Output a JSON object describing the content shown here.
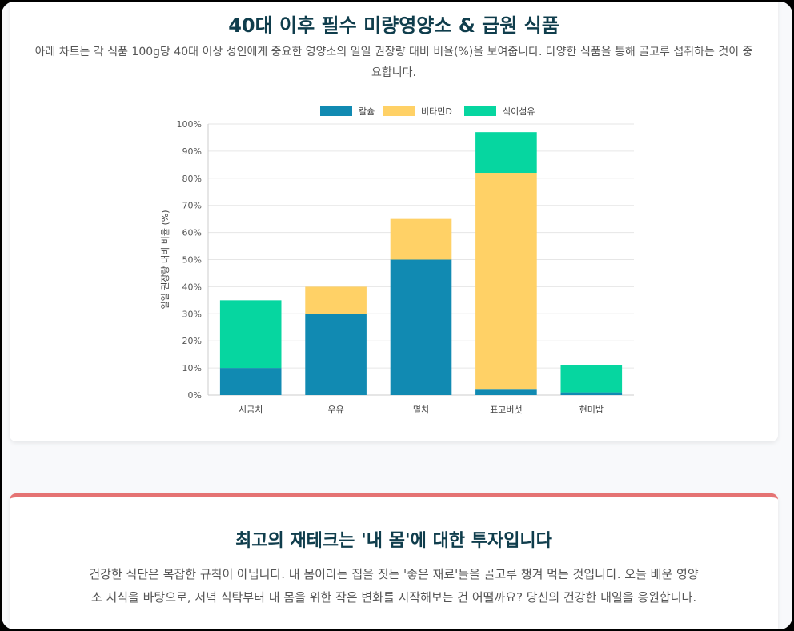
{
  "section1": {
    "title": "40대 이후 필수 미량영양소 & 급원 식품",
    "description": "아래 차트는 각 식품 100g당 40대 이상 성인에게 중요한 영양소의 일일 권장량 대비 비율(%)을 보여줍니다. 다양한 식품을 통해 골고루 섭취하는 것이 중요합니다."
  },
  "chart_data": {
    "type": "bar",
    "stacked": true,
    "categories": [
      "시금치",
      "우유",
      "멸치",
      "표고버섯",
      "현미밥"
    ],
    "series": [
      {
        "name": "칼슘",
        "color": "#118ab2",
        "values": [
          10,
          30,
          50,
          2,
          1
        ]
      },
      {
        "name": "비타민D",
        "color": "#ffd166",
        "values": [
          0,
          10,
          15,
          80,
          0
        ]
      },
      {
        "name": "식이섬유",
        "color": "#06d6a0",
        "values": [
          25,
          0,
          0,
          15,
          10
        ]
      }
    ],
    "ylabel": "일일 권장량 대비 비율 (%)",
    "xlabel": "",
    "ylim": [
      0,
      100
    ],
    "yticks": [
      "0%",
      "10%",
      "20%",
      "30%",
      "40%",
      "50%",
      "60%",
      "70%",
      "80%",
      "90%",
      "100%"
    ],
    "grid": true,
    "legend_position": "top"
  },
  "section2": {
    "title": "최고의 재테크는 '내 몸'에 대한 투자입니다",
    "description": "건강한 식단은 복잡한 규칙이 아닙니다. 내 몸이라는 집을 짓는 '좋은 재료'들을 골고루 챙겨 먹는 것입니다. 오늘 배운 영양소 지식을 바탕으로, 저녁 식탁부터 내 몸을 위한 작은 변화를 시작해보는 건 어떨까요? 당신의 건강한 내일을 응원합니다."
  }
}
